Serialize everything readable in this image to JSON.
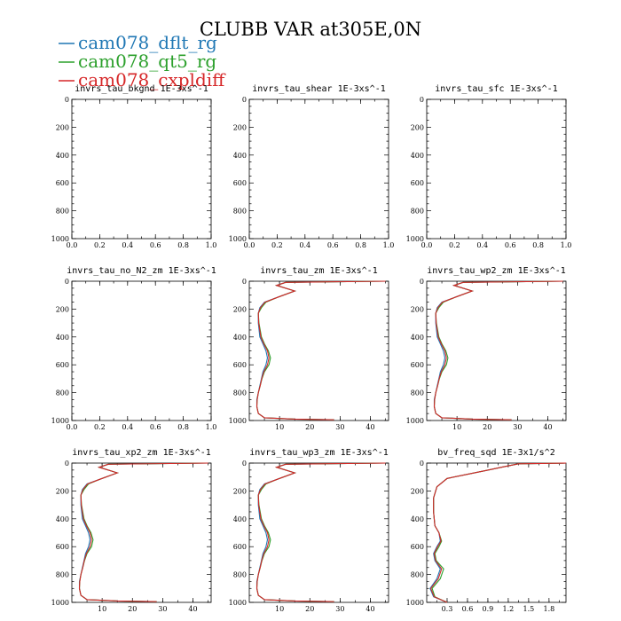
{
  "figure": {
    "title": "CLUBB VAR at305E,0N",
    "legend": [
      {
        "name": "cam078_dflt_rg",
        "color": "#1f77b4"
      },
      {
        "name": "cam078_qt5_rg",
        "color": "#2ca02c"
      },
      {
        "name": "cam078_cxpldiff",
        "color": "#d62728"
      }
    ]
  },
  "chart_data": [
    {
      "type": "line",
      "title": "invrs_tau_bkgnd   1E-3xs^-1",
      "xlim": [
        0,
        1.0
      ],
      "xticks": [
        "0.0",
        "0.2",
        "0.4",
        "0.6",
        "0.8",
        "1.0"
      ],
      "ylim": [
        1000,
        0
      ],
      "yticks": [
        "0",
        "200",
        "400",
        "600",
        "800",
        "1000"
      ],
      "series": []
    },
    {
      "type": "line",
      "title": "invrs_tau_shear   1E-3xs^-1",
      "xlim": [
        0,
        1.0
      ],
      "xticks": [
        "0.0",
        "0.2",
        "0.4",
        "0.6",
        "0.8",
        "1.0"
      ],
      "ylim": [
        1000,
        0
      ],
      "yticks": [
        "0",
        "200",
        "400",
        "600",
        "800",
        "1000"
      ],
      "series": []
    },
    {
      "type": "line",
      "title": "invrs_tau_sfc   1E-3xs^-1",
      "xlim": [
        0,
        1.0
      ],
      "xticks": [
        "0.0",
        "0.2",
        "0.4",
        "0.6",
        "0.8",
        "1.0"
      ],
      "ylim": [
        1000,
        0
      ],
      "yticks": [
        "0",
        "200",
        "400",
        "600",
        "800",
        "1000"
      ],
      "series": []
    },
    {
      "type": "line",
      "title": "invrs_tau_no_N2_zm   1E-3xs^-1",
      "xlim": [
        0,
        1.0
      ],
      "xticks": [
        "0.0",
        "0.2",
        "0.4",
        "0.6",
        "0.8",
        "1.0"
      ],
      "ylim": [
        1000,
        0
      ],
      "yticks": [
        "0",
        "200",
        "400",
        "600",
        "800",
        "1000"
      ],
      "series": []
    },
    {
      "type": "line",
      "title": "invrs_tau_zm   1E-3xs^-1",
      "xlim": [
        0,
        46
      ],
      "xticks": [
        "10",
        "20",
        "30",
        "40"
      ],
      "ylim": [
        1000,
        0
      ],
      "yticks": [
        "0",
        "200",
        "400",
        "600",
        "800",
        "1000"
      ],
      "series": [
        {
          "name": "cam078_dflt_rg",
          "x": [
            45,
            12,
            9,
            15,
            10,
            5,
            3.5,
            3,
            3,
            3.5,
            4.5,
            5.5,
            6,
            5.5,
            4.5,
            4,
            3.5,
            3,
            2.5,
            2.5,
            3,
            5,
            15,
            28
          ],
          "y": [
            0,
            8,
            30,
            70,
            110,
            150,
            190,
            230,
            300,
            400,
            450,
            500,
            550,
            600,
            650,
            700,
            750,
            800,
            850,
            900,
            950,
            980,
            990,
            995
          ]
        },
        {
          "name": "cam078_qt5_rg",
          "x": [
            45,
            12,
            9,
            15,
            10,
            5.5,
            4,
            3,
            3.2,
            4,
            5,
            6.3,
            7,
            6.5,
            5,
            4.2,
            3.6,
            3,
            2.6,
            2.5,
            3,
            5,
            15,
            28
          ],
          "y": [
            0,
            8,
            30,
            70,
            110,
            150,
            190,
            230,
            300,
            400,
            450,
            500,
            550,
            600,
            650,
            700,
            750,
            800,
            850,
            900,
            950,
            980,
            990,
            995
          ]
        },
        {
          "name": "cam078_cxpldiff",
          "x": [
            45,
            12,
            9,
            15,
            10,
            5.2,
            3.7,
            3,
            3.1,
            3.8,
            4.8,
            6,
            6.5,
            6,
            4.8,
            4.1,
            3.6,
            3,
            2.6,
            2.5,
            3,
            5,
            15,
            28
          ],
          "y": [
            0,
            8,
            30,
            70,
            110,
            150,
            190,
            230,
            300,
            400,
            450,
            500,
            550,
            600,
            650,
            700,
            750,
            800,
            850,
            900,
            950,
            980,
            990,
            995
          ]
        }
      ]
    },
    {
      "type": "line",
      "title": "invrs_tau_wp2_zm   1E-3xs^-1",
      "xlim": [
        0,
        46
      ],
      "xticks": [
        "10",
        "20",
        "30",
        "40"
      ],
      "ylim": [
        1000,
        0
      ],
      "yticks": [
        "0",
        "200",
        "400",
        "600",
        "800",
        "1000"
      ],
      "series": [
        {
          "name": "cam078_dflt_rg",
          "x": [
            45,
            12,
            9,
            15,
            10,
            5,
            3.5,
            3,
            3,
            3.5,
            4.5,
            5.5,
            6,
            5.5,
            4.5,
            4,
            3.5,
            3,
            2.5,
            2.5,
            3,
            5,
            15,
            28
          ],
          "y": [
            0,
            8,
            30,
            70,
            110,
            150,
            190,
            230,
            300,
            400,
            450,
            500,
            550,
            600,
            650,
            700,
            750,
            800,
            850,
            900,
            950,
            980,
            990,
            995
          ]
        },
        {
          "name": "cam078_qt5_rg",
          "x": [
            45,
            12,
            9,
            15,
            10,
            5.5,
            4,
            3,
            3.2,
            4,
            5,
            6.3,
            7,
            6.5,
            5,
            4.2,
            3.6,
            3,
            2.6,
            2.5,
            3,
            5,
            15,
            28
          ],
          "y": [
            0,
            8,
            30,
            70,
            110,
            150,
            190,
            230,
            300,
            400,
            450,
            500,
            550,
            600,
            650,
            700,
            750,
            800,
            850,
            900,
            950,
            980,
            990,
            995
          ]
        },
        {
          "name": "cam078_cxpldiff",
          "x": [
            45,
            12,
            9,
            15,
            10,
            5.2,
            3.7,
            3,
            3.1,
            3.8,
            4.8,
            6,
            6.5,
            6,
            4.8,
            4.1,
            3.6,
            3,
            2.6,
            2.5,
            3,
            5,
            15,
            28
          ],
          "y": [
            0,
            8,
            30,
            70,
            110,
            150,
            190,
            230,
            300,
            400,
            450,
            500,
            550,
            600,
            650,
            700,
            750,
            800,
            850,
            900,
            950,
            980,
            990,
            995
          ]
        }
      ]
    },
    {
      "type": "line",
      "title": "invrs_tau_xp2_zm   1E-3xs^-1",
      "xlim": [
        0,
        46
      ],
      "xticks": [
        "10",
        "20",
        "30",
        "40"
      ],
      "ylim": [
        1000,
        0
      ],
      "yticks": [
        "0",
        "200",
        "400",
        "600",
        "800",
        "1000"
      ],
      "series": [
        {
          "name": "cam078_dflt_rg",
          "x": [
            45,
            12,
            9,
            15,
            10,
            5,
            3.5,
            3,
            3,
            3.5,
            4.5,
            5.5,
            6,
            5.5,
            4.5,
            4,
            3.5,
            3,
            2.5,
            2.5,
            3,
            5,
            15,
            28
          ],
          "y": [
            0,
            8,
            30,
            70,
            110,
            150,
            190,
            230,
            300,
            400,
            450,
            500,
            550,
            600,
            650,
            700,
            750,
            800,
            850,
            900,
            950,
            980,
            990,
            995
          ]
        },
        {
          "name": "cam078_qt5_rg",
          "x": [
            45,
            12,
            9,
            15,
            10,
            5.5,
            4,
            3,
            3.2,
            4,
            5,
            6.3,
            7,
            6.5,
            5,
            4.2,
            3.6,
            3,
            2.6,
            2.5,
            3,
            5,
            15,
            28
          ],
          "y": [
            0,
            8,
            30,
            70,
            110,
            150,
            190,
            230,
            300,
            400,
            450,
            500,
            550,
            600,
            650,
            700,
            750,
            800,
            850,
            900,
            950,
            980,
            990,
            995
          ]
        },
        {
          "name": "cam078_cxpldiff",
          "x": [
            45,
            12,
            9,
            15,
            10,
            5.2,
            3.7,
            3,
            3.1,
            3.8,
            4.8,
            6,
            6.5,
            6,
            4.8,
            4.1,
            3.6,
            3,
            2.6,
            2.5,
            3,
            5,
            15,
            28
          ],
          "y": [
            0,
            8,
            30,
            70,
            110,
            150,
            190,
            230,
            300,
            400,
            450,
            500,
            550,
            600,
            650,
            700,
            750,
            800,
            850,
            900,
            950,
            980,
            990,
            995
          ]
        }
      ]
    },
    {
      "type": "line",
      "title": "invrs_tau_wp3_zm   1E-3xs^-1",
      "xlim": [
        0,
        46
      ],
      "xticks": [
        "10",
        "20",
        "30",
        "40"
      ],
      "ylim": [
        1000,
        0
      ],
      "yticks": [
        "0",
        "200",
        "400",
        "600",
        "800",
        "1000"
      ],
      "series": [
        {
          "name": "cam078_dflt_rg",
          "x": [
            45,
            12,
            9,
            15,
            10,
            5,
            3.5,
            3,
            3,
            3.5,
            4.5,
            5.5,
            6,
            5.5,
            4.5,
            4,
            3.5,
            3,
            2.5,
            2.5,
            3,
            5,
            15,
            28
          ],
          "y": [
            0,
            8,
            30,
            70,
            110,
            150,
            190,
            230,
            300,
            400,
            450,
            500,
            550,
            600,
            650,
            700,
            750,
            800,
            850,
            900,
            950,
            980,
            990,
            995
          ]
        },
        {
          "name": "cam078_qt5_rg",
          "x": [
            45,
            12,
            9,
            15,
            10,
            5.5,
            4,
            3,
            3.2,
            4,
            5,
            6.3,
            7,
            6.5,
            5,
            4.2,
            3.6,
            3,
            2.6,
            2.5,
            3,
            5,
            15,
            28
          ],
          "y": [
            0,
            8,
            30,
            70,
            110,
            150,
            190,
            230,
            300,
            400,
            450,
            500,
            550,
            600,
            650,
            700,
            750,
            800,
            850,
            900,
            950,
            980,
            990,
            995
          ]
        },
        {
          "name": "cam078_cxpldiff",
          "x": [
            45,
            12,
            9,
            15,
            10,
            5.2,
            3.7,
            3,
            3.1,
            3.8,
            4.8,
            6,
            6.5,
            6,
            4.8,
            4.1,
            3.6,
            3,
            2.6,
            2.5,
            3,
            5,
            15,
            28
          ],
          "y": [
            0,
            8,
            30,
            70,
            110,
            150,
            190,
            230,
            300,
            400,
            450,
            500,
            550,
            600,
            650,
            700,
            750,
            800,
            850,
            900,
            950,
            980,
            990,
            995
          ]
        }
      ]
    },
    {
      "type": "line",
      "title": "bv_freq_sqd   1E-3x1/s^2",
      "xlim": [
        0,
        2.05
      ],
      "xticks": [
        "0.3",
        "0.6",
        "0.9",
        "1.2",
        "1.5",
        "1.8"
      ],
      "ylim": [
        1000,
        0
      ],
      "yticks": [
        "0",
        "200",
        "400",
        "600",
        "800",
        "1000"
      ],
      "series": [
        {
          "name": "cam078_dflt_rg",
          "x": [
            2.05,
            1.35,
            1.1,
            0.9,
            0.3,
            0.15,
            0.1,
            0.1,
            0.12,
            0.18,
            0.2,
            0.15,
            0.1,
            0.12,
            0.2,
            0.15,
            0.05,
            0.1,
            0.3
          ],
          "y": [
            0,
            5,
            30,
            50,
            110,
            170,
            250,
            350,
            450,
            500,
            560,
            600,
            650,
            700,
            760,
            830,
            900,
            960,
            1000
          ]
        },
        {
          "name": "cam078_qt5_rg",
          "x": [
            2.05,
            1.35,
            1.1,
            0.9,
            0.3,
            0.15,
            0.1,
            0.1,
            0.12,
            0.18,
            0.22,
            0.18,
            0.12,
            0.14,
            0.25,
            0.2,
            0.08,
            0.12,
            0.3
          ],
          "y": [
            0,
            5,
            30,
            50,
            110,
            170,
            250,
            350,
            450,
            500,
            560,
            600,
            650,
            700,
            760,
            830,
            900,
            960,
            1000
          ]
        },
        {
          "name": "cam078_cxpldiff",
          "x": [
            2.05,
            1.35,
            1.1,
            0.9,
            0.3,
            0.15,
            0.1,
            0.1,
            0.12,
            0.18,
            0.21,
            0.16,
            0.11,
            0.13,
            0.22,
            0.17,
            0.06,
            0.11,
            0.3
          ],
          "y": [
            0,
            5,
            30,
            50,
            110,
            170,
            250,
            350,
            450,
            500,
            560,
            600,
            650,
            700,
            760,
            830,
            900,
            960,
            1000
          ]
        }
      ]
    }
  ]
}
